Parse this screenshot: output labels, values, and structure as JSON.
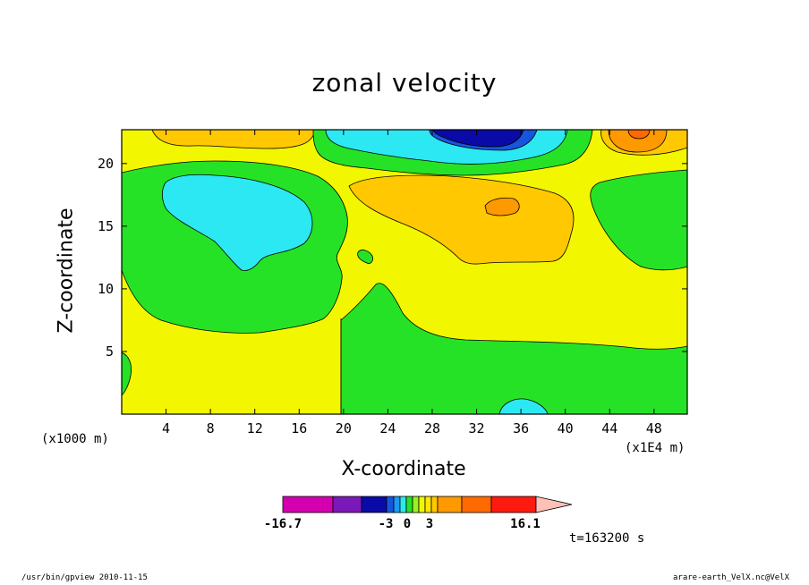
{
  "chart_data": {
    "type": "heatmap",
    "title": "zonal velocity",
    "xlabel": "X-coordinate",
    "ylabel": "Z-coordinate",
    "x_unit_label": "(x1E4 m)",
    "y_unit_label": "(x1000 m)",
    "x_ticks": [
      "4",
      "8",
      "12",
      "16",
      "20",
      "24",
      "28",
      "32",
      "36",
      "40",
      "44",
      "48"
    ],
    "y_ticks": [
      "5",
      "10",
      "15",
      "20"
    ],
    "xlim": [
      0,
      51
    ],
    "ylim": [
      0,
      22.7
    ],
    "colorbar": {
      "min_label": "-16.7",
      "max_label": "16.1",
      "tick_labels": [
        "-3",
        "0",
        "3"
      ],
      "colors": [
        "#d400b0",
        "#7b18b8",
        "#0a0aa8",
        "#1656dd",
        "#1a9af0",
        "#2ce8f2",
        "#26e226",
        "#9cf021",
        "#f2f700",
        "#ffe600",
        "#ffc800",
        "#ff9900",
        "#ff6a00",
        "#ff1a10",
        "#ff7a73",
        "#ffc0b8"
      ]
    },
    "regions": [
      {
        "value_range": "0 to 3",
        "color": "#f2f700",
        "extent": "background"
      },
      {
        "value_range": "-3 to 0",
        "color": "#26e226",
        "extent": "x 0-20, z 7-20"
      },
      {
        "value_range": "-6 to -3",
        "color": "#2ce8f2",
        "extent": "x 4-17, z 12-19"
      },
      {
        "value_range": "-3 to 0",
        "color": "#26e226",
        "extent": "x 20-51, z 0-10"
      },
      {
        "value_range": "3 to 6",
        "color": "#ffc800",
        "extent": "x 20-40, z 12-19"
      },
      {
        "value_range": "6 to 9",
        "color": "#ff9900",
        "extent": "x 33-36, z 16-18"
      },
      {
        "value_range": "-6 to -3",
        "color": "#2ce8f2",
        "extent": "x 18-39, z 20-22.7"
      },
      {
        "value_range": "-9 to -6",
        "color": "#0a0aa8",
        "extent": "x 28-36, z 21-22.7"
      },
      {
        "value_range": "3 to 6",
        "color": "#ffc800",
        "extent": "x 2-16, z 21-22.7"
      },
      {
        "value_range": "6 to 9",
        "color": "#ff9900",
        "extent": "x 44-50, z 21-22.7"
      },
      {
        "value_range": "-3 to 0",
        "color": "#26e226",
        "extent": "x 43-51, z 12-19"
      }
    ]
  },
  "time_label": "t=163200 s",
  "footer": {
    "left": "/usr/bin/gpview   2010-11-15",
    "right": "arare-earth_VelX.nc@VelX"
  }
}
